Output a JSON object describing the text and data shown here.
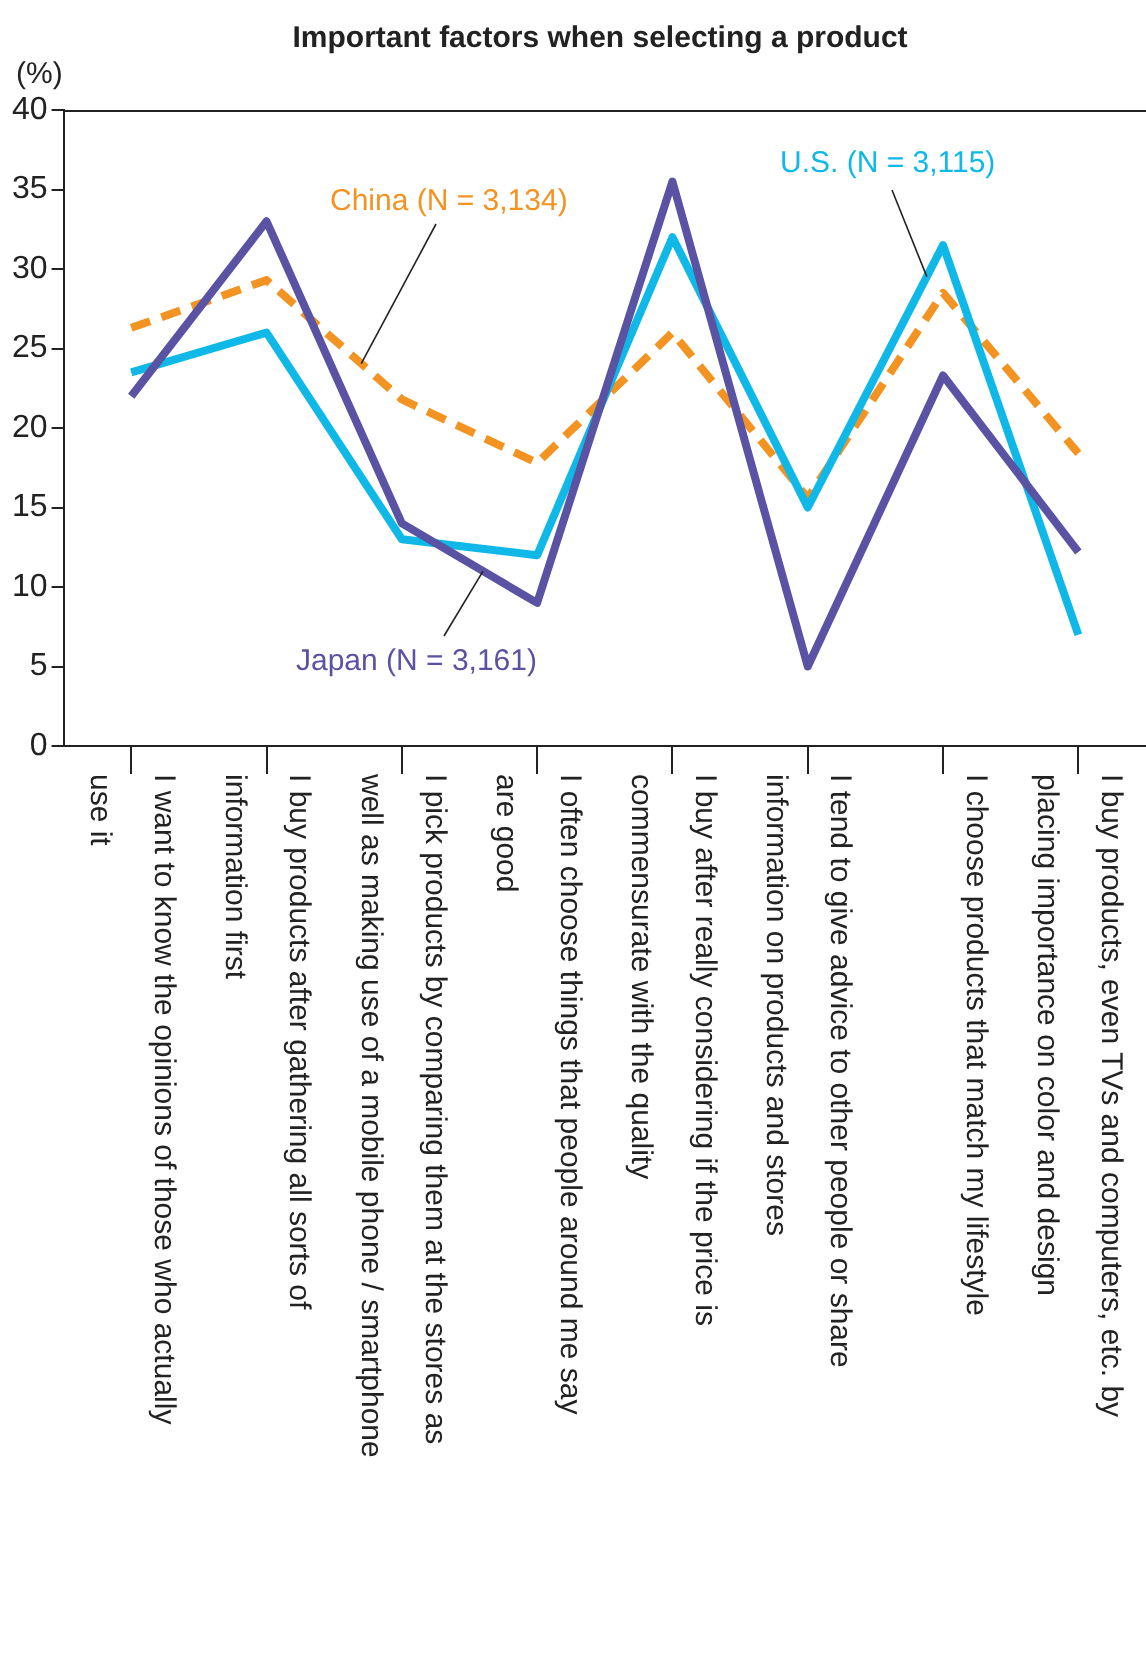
{
  "chart_data": {
    "type": "line",
    "title": "Important factors when selecting a product",
    "ylabel": "(%)",
    "categories": [
      "I want to know the opinions of those who actually use it",
      "I buy products after gathering all sorts of information first",
      "I pick products by comparing them at the stores as well as making use of a mobile phone / smartphone",
      "I often choose things that people around me say are good",
      "I buy after really considering if the price is commensurate with the quality",
      "I tend to give advice to other people or share information on products and stores",
      "I choose products that match my lifestyle",
      "I buy products, even TVs and computers, etc. by placing importance on color and design"
    ],
    "series": [
      {
        "name": "Japan (N = 3,161)",
        "color": "#5a52a2",
        "values": [
          22,
          33,
          14,
          9,
          35.5,
          5,
          23.3,
          12.2
        ]
      },
      {
        "name": "U.S. (N = 3,115)",
        "color": "#10b8e8",
        "values": [
          23.5,
          26,
          13,
          12,
          32,
          15,
          31.5,
          7
        ]
      },
      {
        "name": "China (N = 3,134)",
        "color": "#f39322",
        "line_style": "dashed",
        "values": [
          26.3,
          29.3,
          21.8,
          17.8,
          26,
          15.6,
          28.5,
          18.4
        ]
      }
    ],
    "ylim": [
      0,
      40
    ],
    "yticks": [
      0,
      5,
      10,
      15,
      20,
      25,
      30,
      35,
      40
    ],
    "grid": false,
    "legend": false,
    "marker": "none"
  }
}
